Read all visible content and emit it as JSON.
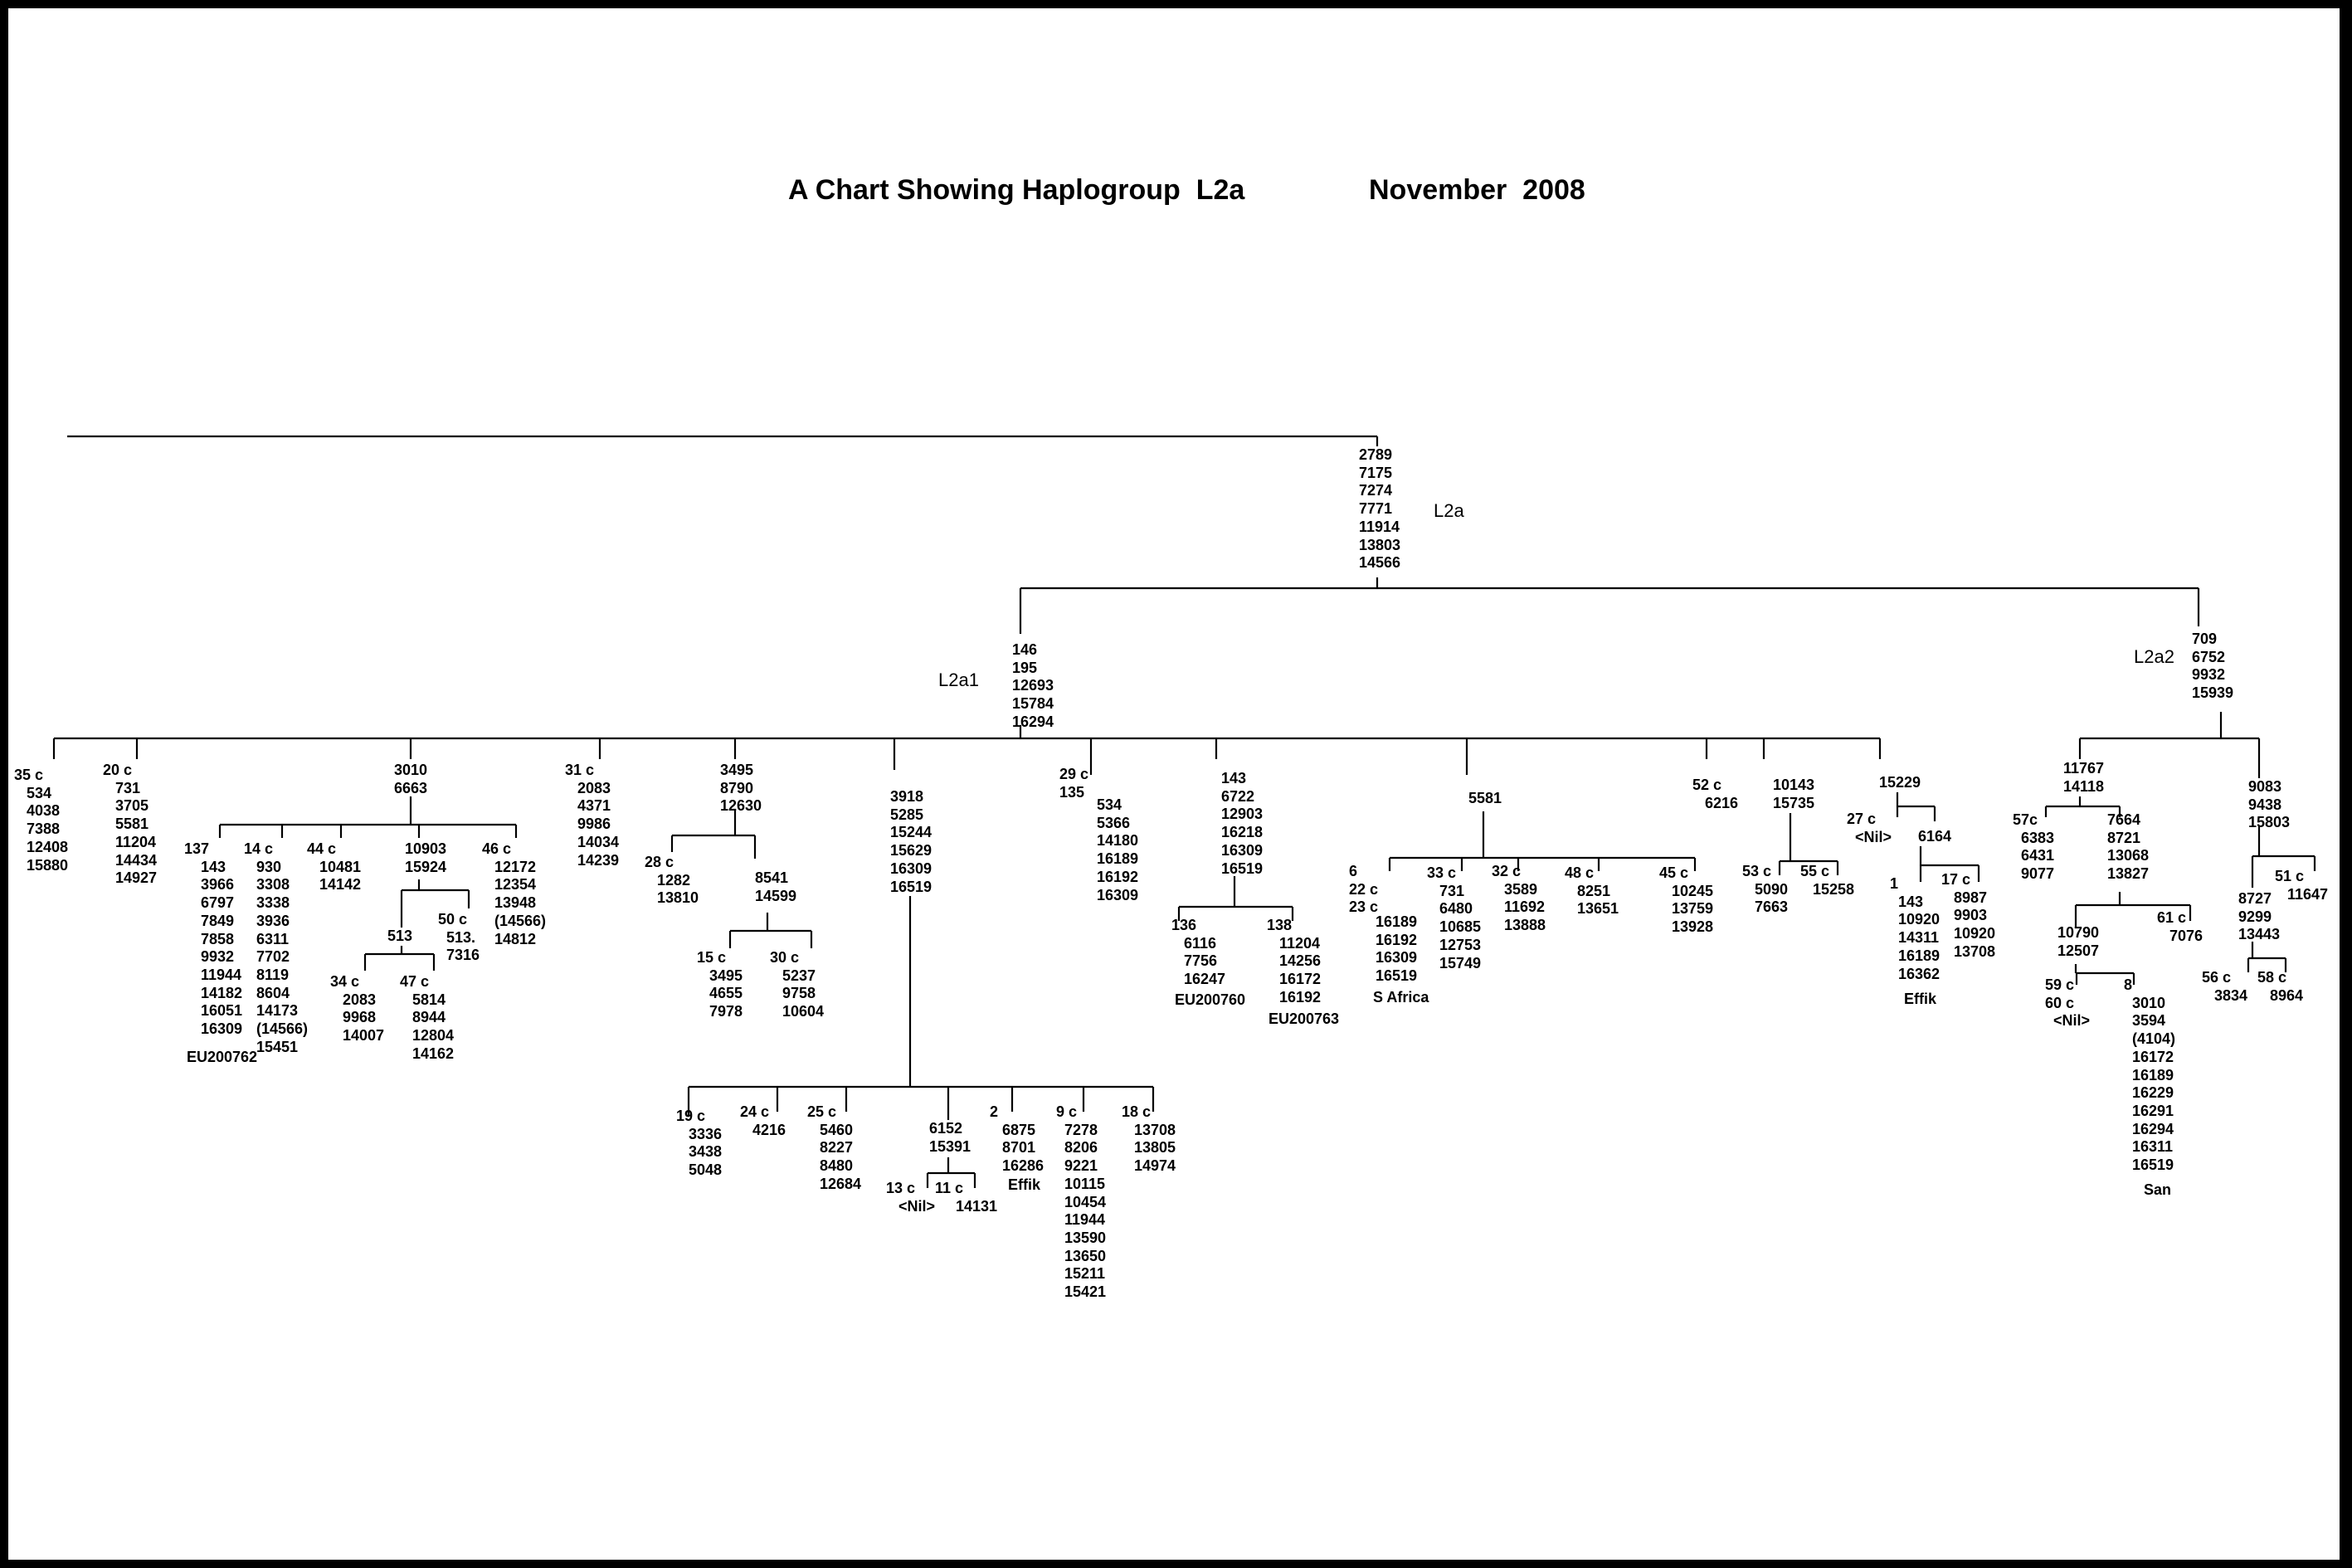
{
  "title": "A Chart Showing Haplogroup  L2a",
  "date": "November  2008",
  "nodes": {
    "L2a_root": "2789\n7175\n7274\n7771\n11914\n13803\n14566",
    "L2a1_root": "146\n195\n12693\n15784\n16294",
    "L2a2_root": "709\n6752\n9932\n15939",
    "n35c": "35 c\n   534\n   4038\n   7388\n   12408\n   15880",
    "n20c": "20 c\n   731\n   3705\n   5581\n   11204\n   14434\n   14927",
    "n3010": "3010\n6663",
    "n137": "137\n    143\n    3966\n    6797\n    7849\n    7858\n    9932\n    11944\n    14182\n    16051\n    16309",
    "n137_name": "EU200762",
    "n14c": "14 c\n   930\n   3308\n   3338\n   3936\n   6311\n   7702\n   8119\n   8604\n   14173\n   (14566)\n   15451",
    "n44c": "44 c\n   10481\n   14142",
    "n10903": "10903\n15924",
    "n46c": "46 c\n   12172\n   12354\n   13948\n   (14566)\n   14812",
    "n513": "513",
    "n50c": "50 c\n  513.\n  7316",
    "n34c": "34 c\n   2083\n   9968\n   14007",
    "n47c": "47 c\n   5814\n   8944\n   12804\n   14162",
    "n31c": "31 c\n   2083\n   4371\n   9986\n   14034\n   14239",
    "n3495": "3495\n8790\n12630",
    "n28c": "28 c\n   1282\n   13810",
    "n8541": "8541\n14599",
    "n15c": "15 c\n   3495\n   4655\n   7978",
    "n30c": "30 c\n   5237\n   9758\n   10604",
    "n3918": "3918\n5285\n15244\n15629\n16309\n16519",
    "n19c": "19 c\n   3336\n   3438\n   5048",
    "n24c": "24 c\n   4216",
    "n25c": "25 c\n   5460\n   8227\n   8480\n   12684",
    "n6152": "6152\n15391",
    "n13c": "13 c\n   <Nil>",
    "n11c": "11 c\n     14131",
    "n2": "2\n   6875\n   8701\n   16286",
    "n2_name": "Effik",
    "n9c": "9 c\n  7278\n  8206\n  9221\n  10115\n  10454\n  11944\n  13590\n  13650\n  15211\n  15421",
    "n18c": "18 c\n   13708\n   13805\n   14974",
    "n29c": "29 c\n135",
    "n29c_list": "534\n5366\n14180\n16189\n16192\n16309",
    "n143": "143\n6722\n12903\n16218\n16309\n16519",
    "n136": "136\n   6116\n   7756\n   16247",
    "n136_name": "EU200760",
    "n138": "138\n   11204\n   14256\n   16172\n   16192",
    "n138_name": "EU200763",
    "n5581": "5581",
    "n6": "6\n22 c\n23 c",
    "n6_list": "16189\n16192\n16309\n16519",
    "n6_name": "S Africa",
    "n33c": "33 c\n   731\n   6480\n   10685\n   12753\n   15749",
    "n32c": "32 c\n   3589\n   11692\n   13888",
    "n48c": "48 c\n   8251\n   13651",
    "n45c": "45 c\n   10245\n   13759\n   13928",
    "n52c": "52 c\n   6216",
    "n10143": "10143\n15735",
    "n53c": "53 c\n   5090\n   7663",
    "n55c": "55 c\n   15258",
    "n15229": "15229",
    "n27c": "27 c\n  <Nil>",
    "n6164": "6164",
    "n1": "1\n  143\n  10920\n  14311\n  16189\n  16362",
    "n1_name": "Effik",
    "n17c": "17 c\n   8987\n   9903\n   10920\n   13708",
    "n11767": "11767\n14118",
    "n57c": "57c\n  6383\n  6431\n  9077",
    "n7664": "7664\n8721\n13068\n13827",
    "n10790": "10790\n12507",
    "n61c": "61 c\n   7076",
    "n59c": "59 c\n60 c\n  <Nil>",
    "n8": "8\n  3010\n  3594\n  (4104)\n  16172\n  16189\n  16229\n  16291\n  16294\n  16311\n  16519",
    "n8_name": "San",
    "n9083": "9083\n9438\n15803",
    "n8727": "8727\n9299\n13443",
    "n51c": "51 c\n   11647",
    "n56c": "56 c\n   3834",
    "n58c": "58 c\n   8964"
  },
  "haplogroups": {
    "L2a": "L2a",
    "L2a1": "L2a1",
    "L2a2": "L2a2"
  }
}
